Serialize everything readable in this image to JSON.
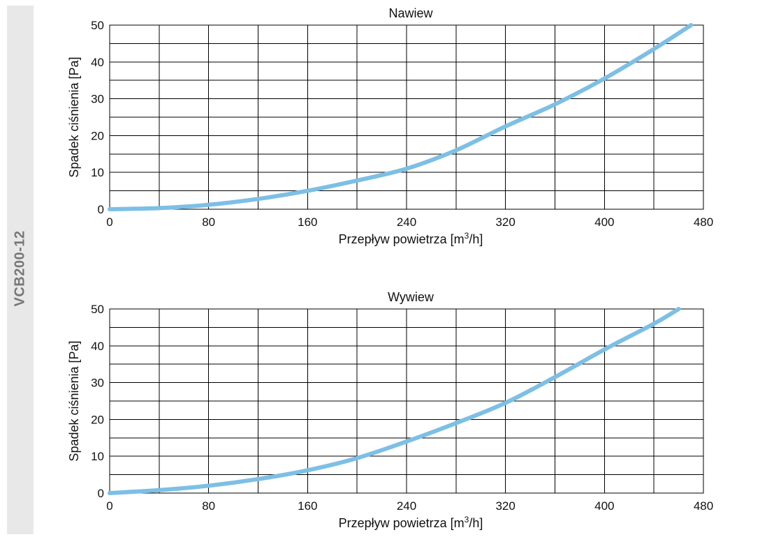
{
  "side_label": "VCB200-12",
  "chart_data": [
    {
      "type": "line",
      "title": "Nawiew",
      "xlabel": "Przepływ powietrza [m",
      "xlabel_sup": "3",
      "xlabel_end": "/h]",
      "ylabel": "Spadek ciśnienia [Pa]",
      "xlim": [
        0,
        480
      ],
      "ylim": [
        0,
        50
      ],
      "xticks": [
        0,
        80,
        160,
        240,
        320,
        400,
        480
      ],
      "yticks": [
        0,
        10,
        20,
        30,
        40,
        50
      ],
      "grid": true,
      "color": "#7dbfe5",
      "series": [
        {
          "x": [
            0,
            40,
            80,
            120,
            160,
            200,
            240,
            280,
            320,
            360,
            400,
            440,
            470
          ],
          "y": [
            0,
            0.3,
            1.2,
            2.8,
            5,
            7.8,
            11,
            16,
            22.5,
            28.5,
            35.5,
            43.5,
            50
          ]
        }
      ]
    },
    {
      "type": "line",
      "title": "Wywiew",
      "xlabel": "Przepływ powietrza [m",
      "xlabel_sup": "3",
      "xlabel_end": "/h]",
      "ylabel": "Spadek ciśnienia [Pa]",
      "xlim": [
        0,
        480
      ],
      "ylim": [
        0,
        50
      ],
      "xticks": [
        0,
        80,
        160,
        240,
        320,
        400,
        480
      ],
      "yticks": [
        0,
        10,
        20,
        30,
        40,
        50
      ],
      "grid": true,
      "color": "#7dbfe5",
      "series": [
        {
          "x": [
            0,
            40,
            80,
            120,
            160,
            200,
            240,
            280,
            320,
            360,
            400,
            440,
            460
          ],
          "y": [
            0,
            0.8,
            2,
            3.8,
            6.2,
            9.5,
            14,
            19,
            24.5,
            31.5,
            39,
            46,
            50
          ]
        }
      ]
    }
  ]
}
